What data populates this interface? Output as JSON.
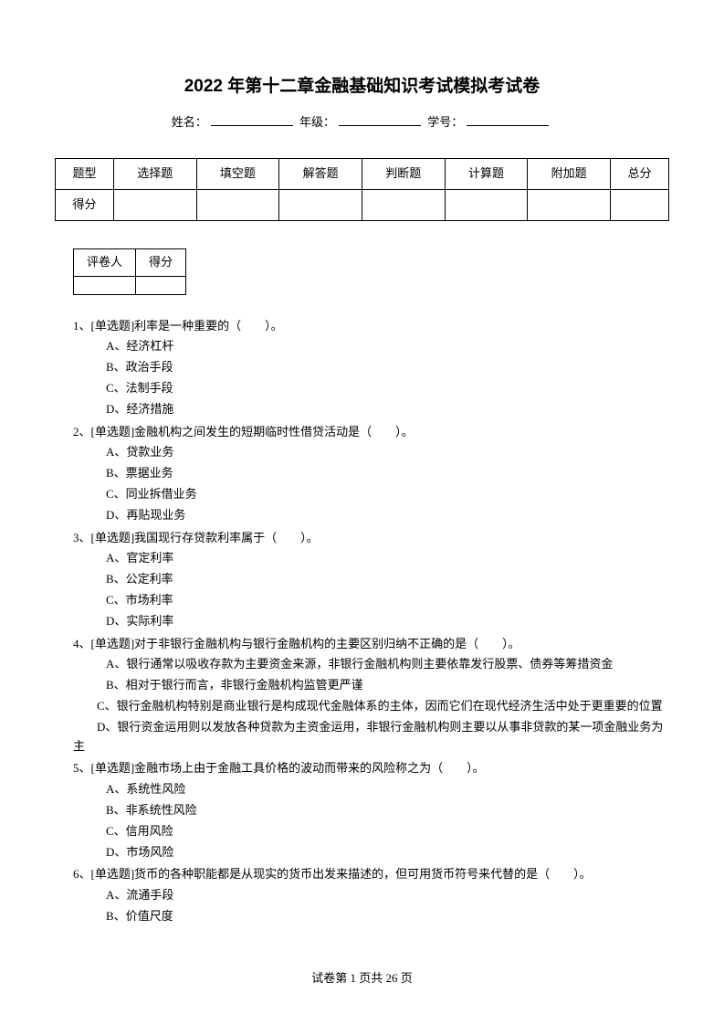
{
  "title": "2022 年第十二章金融基础知识考试模拟考试卷",
  "info": {
    "name_label": "姓名：",
    "grade_label": "年级：",
    "id_label": "学号："
  },
  "score_table": {
    "headers": [
      "题型",
      "选择题",
      "填空题",
      "解答题",
      "判断题",
      "计算题",
      "附加题",
      "总分"
    ],
    "row_label": "得分"
  },
  "grader_table": {
    "headers": [
      "评卷人",
      "得分"
    ]
  },
  "questions": [
    {
      "num": "1、",
      "type": "[单选题]",
      "stem": "利率是一种重要的（　　）。",
      "options": [
        "A、经济杠杆",
        "B、政治手段",
        "C、法制手段",
        "D、经济措施"
      ]
    },
    {
      "num": "2、",
      "type": "[单选题]",
      "stem": "金融机构之间发生的短期临时性借贷活动是（　　）。",
      "options": [
        "A、贷款业务",
        "B、票据业务",
        "C、同业拆借业务",
        "D、再贴现业务"
      ]
    },
    {
      "num": "3、",
      "type": "[单选题]",
      "stem": "我国现行存贷款利率属于（　　）。",
      "options": [
        "A、官定利率",
        "B、公定利率",
        "C、市场利率",
        "D、实际利率"
      ]
    },
    {
      "num": "4、",
      "type": "[单选题]",
      "stem": "对于非银行金融机构与银行金融机构的主要区别归纳不正确的是（　　）。",
      "options": [
        "A、银行通常以吸收存款为主要资金来源，非银行金融机构则主要依靠发行股票、债券等筹措资金",
        "B、相对于银行而言，非银行金融机构监管更严谨",
        "C、银行金融机构特别是商业银行是构成现代金融体系的主体，因而它们在现代经济生活中处于更重要的位置",
        "D、银行资金运用则以发放各种贷款为主资金运用，非银行金融机构则主要以从事非贷款的某一项金融业务为主"
      ],
      "wrap_options": [
        2,
        3
      ]
    },
    {
      "num": "5、",
      "type": "[单选题]",
      "stem": "金融市场上由于金融工具价格的波动而带来的风险称之为（　　）。",
      "options": [
        "A、系统性风险",
        "B、非系统性风险",
        "C、信用风险",
        "D、市场风险"
      ]
    },
    {
      "num": "6、",
      "type": "[单选题]",
      "stem": "货币的各种职能都是从现实的货币出发来描述的，但可用货币符号来代替的是（　　）。",
      "options": [
        "A、流通手段",
        "B、价值尺度"
      ]
    }
  ],
  "footer": {
    "prefix": "试卷第 ",
    "current": "1",
    "middle": " 页共 ",
    "total": "26",
    "suffix": " 页"
  }
}
